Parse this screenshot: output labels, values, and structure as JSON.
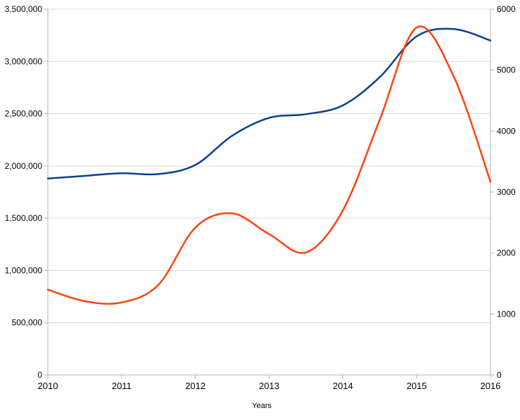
{
  "chart_data": {
    "type": "line",
    "title": "",
    "xlabel": "Years",
    "ylabel_left": "",
    "ylabel_right": "",
    "legend": "none",
    "grid": "horizontal",
    "x_axis": {
      "min": 2010,
      "max": 2016,
      "tick_step": 1,
      "tick_labels": [
        "2010",
        "2011",
        "2012",
        "2013",
        "2014",
        "2015",
        "2016"
      ]
    },
    "left_axis": {
      "min": 0,
      "max": 3500000,
      "tick_step": 500000,
      "tick_labels": [
        "0",
        "500,000",
        "1,000,000",
        "1,500,000",
        "2,000,000",
        "2,500,000",
        "3,000,000",
        "3,500,000"
      ]
    },
    "right_axis": {
      "min": 0,
      "max": 6000,
      "tick_step": 1000,
      "tick_labels": [
        "0",
        "1000",
        "2000",
        "3000",
        "4000",
        "5000",
        "6000"
      ]
    },
    "series": [
      {
        "name": "blue-series",
        "axis": "left",
        "color": "#0d3f8c",
        "points": [
          [
            2010,
            1880000
          ],
          [
            2010.5,
            1905000
          ],
          [
            2011,
            1930000
          ],
          [
            2011.5,
            1922000
          ],
          [
            2012,
            2010000
          ],
          [
            2012.5,
            2290000
          ],
          [
            2013,
            2460000
          ],
          [
            2013.5,
            2495000
          ],
          [
            2014,
            2580000
          ],
          [
            2014.5,
            2850000
          ],
          [
            2015,
            3240000
          ],
          [
            2015.5,
            3310000
          ],
          [
            2016,
            3200000
          ]
        ]
      },
      {
        "name": "red-series",
        "axis": "right",
        "color": "#ff420e",
        "points": [
          [
            2010,
            1400
          ],
          [
            2010.5,
            1210
          ],
          [
            2011,
            1190
          ],
          [
            2011.5,
            1480
          ],
          [
            2012,
            2420
          ],
          [
            2012.5,
            2650
          ],
          [
            2013,
            2310
          ],
          [
            2013.5,
            2010
          ],
          [
            2014,
            2700
          ],
          [
            2014.5,
            4190
          ],
          [
            2015,
            5700
          ],
          [
            2015.5,
            4900
          ],
          [
            2016,
            3170
          ]
        ]
      }
    ],
    "colors": {
      "background": "#ffffff",
      "gridline": "#d9d9d9",
      "axis": "#b3b3b3",
      "label": "#000000"
    }
  }
}
